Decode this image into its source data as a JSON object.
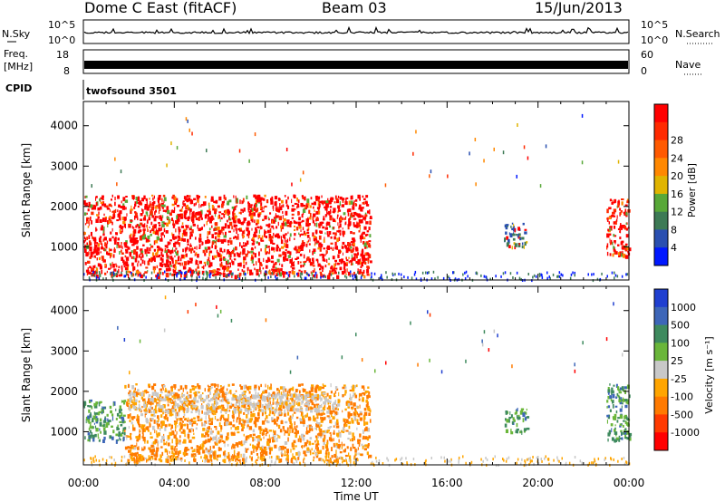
{
  "header": {
    "station": "Dome C East (fitACF)",
    "beam": "Beam 03",
    "date": "15/Jun/2013"
  },
  "nsky_panel": {
    "left_label": "N.Sky",
    "right_label": "N.Search",
    "left_ticks": [
      "10^5",
      "10^0"
    ],
    "right_ticks": [
      "10^5",
      "10^0"
    ]
  },
  "freq_panel": {
    "left_label": "Freq.",
    "left_unit": "[MHz]",
    "right_label": "Nave",
    "left_ticks": [
      "18",
      "8"
    ],
    "right_ticks": [
      "60",
      "0"
    ]
  },
  "cpid_panel": {
    "label": "CPID",
    "program": "twofsound 3501"
  },
  "chart_data": [
    {
      "type": "heatmap",
      "name": "power",
      "ylabel": "Slant Range [km]",
      "yticks": [
        "1000",
        "2000",
        "3000",
        "4000"
      ],
      "ylim": [
        180,
        4600
      ],
      "xlim": [
        0,
        24
      ],
      "colorbar": {
        "label": "Power [dB]",
        "ticks": [
          "4",
          "8",
          "12",
          "16",
          "20",
          "24",
          "28"
        ],
        "colors": [
          "#0018ff",
          "#2a4fb0",
          "#3d7a55",
          "#58a838",
          "#e0b400",
          "#ff8800",
          "#ff5a00",
          "#ff2a00",
          "#ff0000"
        ]
      },
      "regions": [
        {
          "t": [
            0.0,
            12.6
          ],
          "r": [
            300,
            2300
          ],
          "level": "high"
        },
        {
          "t": [
            18.5,
            19.5
          ],
          "r": [
            1000,
            1600
          ],
          "level": "medium"
        },
        {
          "t": [
            23.0,
            24.0
          ],
          "r": [
            800,
            2200
          ],
          "level": "high"
        }
      ]
    },
    {
      "type": "heatmap",
      "name": "velocity",
      "ylabel": "Slant Range [km]",
      "xlabel": "Time UT",
      "xticks": [
        "00:00",
        "04:00",
        "08:00",
        "12:00",
        "16:00",
        "20:00",
        "00:00"
      ],
      "yticks": [
        "1000",
        "2000",
        "3000",
        "4000"
      ],
      "ylim": [
        180,
        4600
      ],
      "xlim": [
        0,
        24
      ],
      "colorbar": {
        "label": "Velocity [m s⁻¹]",
        "ticks": [
          "1000",
          "500",
          "100",
          "25",
          "-25",
          "-100",
          "-500",
          "-1000"
        ],
        "colors": [
          "#1f3fd0",
          "#3d66b8",
          "#3e8a5e",
          "#6ab63a",
          "#c8c8c8",
          "#ffa500",
          "#ff7a00",
          "#ff3a00",
          "#ff0000"
        ]
      },
      "regions": [
        {
          "t": [
            0.0,
            1.8
          ],
          "r": [
            800,
            1800
          ],
          "level": "positive"
        },
        {
          "t": [
            1.8,
            12.6
          ],
          "r": [
            300,
            2200
          ],
          "level": "negative"
        },
        {
          "t": [
            2.0,
            11.0
          ],
          "r": [
            1500,
            2000
          ],
          "level": "near-zero"
        },
        {
          "t": [
            18.5,
            19.5
          ],
          "r": [
            1000,
            1600
          ],
          "level": "positive"
        },
        {
          "t": [
            23.0,
            24.0
          ],
          "r": [
            800,
            2200
          ],
          "level": "positive"
        }
      ]
    }
  ]
}
